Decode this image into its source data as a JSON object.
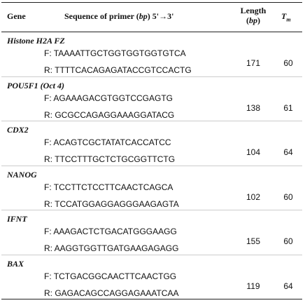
{
  "header": {
    "gene": "Gene",
    "sequence": [
      "Sequence of primer (",
      "bp",
      ") 5'→3'"
    ],
    "length": [
      "Length",
      "(",
      "bp",
      ")"
    ],
    "tm": [
      "T",
      "m"
    ]
  },
  "rows": [
    {
      "gene": "Histone H2A FZ",
      "forward": "F: TAAAATTGCTGGTGGTGGTGTCA",
      "reverse": "R: TTTTCACAGAGATACCGTCCACTG",
      "length": 171,
      "tm": 60
    },
    {
      "gene": "POU5F1 (Oct 4)",
      "forward": "F: AGAAAGACGTGGTCCGAGTG",
      "reverse": "R: GCGCCAGAGGAAAGGATACG",
      "length": 138,
      "tm": 61
    },
    {
      "gene": "CDX2",
      "forward": "F: ACAGTCGCTATATCACCATCC",
      "reverse": "R: TTCCTTTGCTCTGCGGTTCTG",
      "length": 104,
      "tm": 64
    },
    {
      "gene": "NANOG",
      "forward": "F: TCCTTCTCCTTCAACTCAGCA",
      "reverse": "R: TCCATGGAGGAGGGAAGAGTA",
      "length": 102,
      "tm": 60
    },
    {
      "gene": "IFNT",
      "forward": "F: AAAGACTCTGACATGGGAAGG",
      "reverse": "R: AAGGTGGTTGATGAAGAGAGG",
      "length": 155,
      "tm": 60
    },
    {
      "gene": "BAX",
      "forward": "F: TCTGACGGCAACTTCAACTGG",
      "reverse": "R: GAGACAGCCAGGAGAAATCAA",
      "length": 119,
      "tm": 64
    }
  ]
}
